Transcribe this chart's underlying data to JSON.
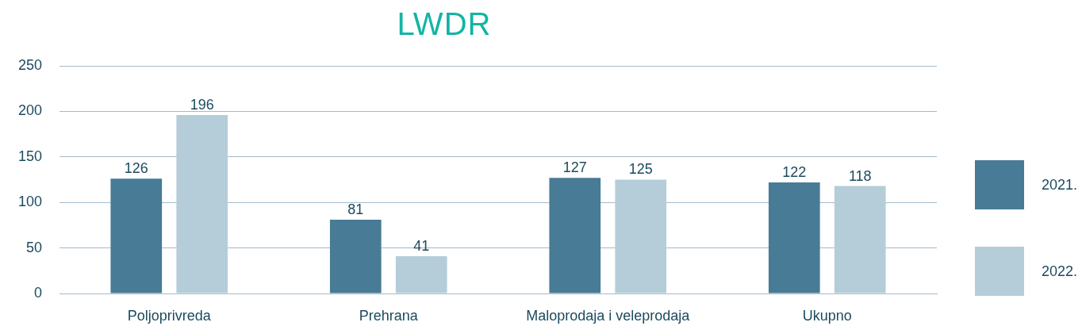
{
  "chart_data": {
    "type": "bar",
    "title": "LWDR",
    "categories": [
      "Poljoprivreda",
      "Prehrana",
      "Maloprodaja i veleprodaja",
      "Ukupno"
    ],
    "series": [
      {
        "name": "2021.",
        "color": "#477b96",
        "values": [
          126,
          81,
          127,
          122
        ]
      },
      {
        "name": "2022.",
        "color": "#b5cdd9",
        "values": [
          196,
          41,
          125,
          118
        ]
      }
    ],
    "ylim": [
      0,
      250
    ],
    "yticks": [
      0,
      50,
      100,
      150,
      200,
      250
    ],
    "grid": "y",
    "legend": "bottom right",
    "data_labels": true
  }
}
